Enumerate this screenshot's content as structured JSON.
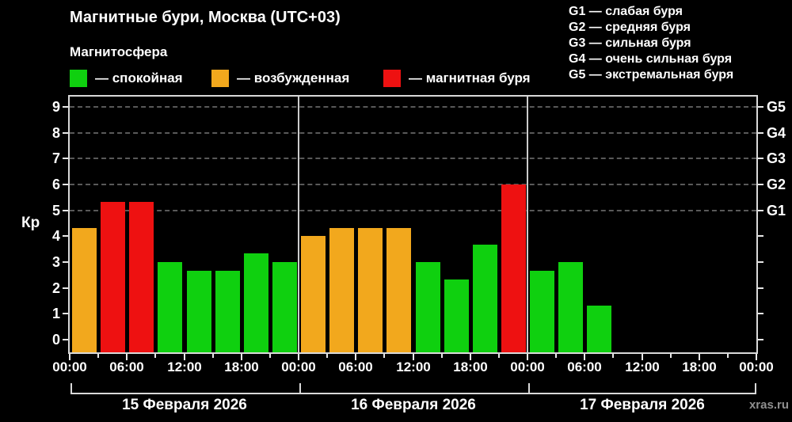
{
  "header": {
    "title": "Магнитные бури, Москва (UTC+03)",
    "subtitle": "Магнитосфера"
  },
  "legend": {
    "items": [
      {
        "key": "quiet",
        "label": "— спокойная",
        "color": "#0fd00f"
      },
      {
        "key": "excited",
        "label": "— возбужденная",
        "color": "#f2a81d"
      },
      {
        "key": "storm",
        "label": "— магнитная буря",
        "color": "#ee1111"
      }
    ]
  },
  "g_legend": {
    "items": [
      {
        "label": "G1 — слабая буря"
      },
      {
        "label": "G2 — средняя буря"
      },
      {
        "label": "G3 — сильная буря"
      },
      {
        "label": "G4 — очень сильная буря"
      },
      {
        "label": "G5 — экстремальная буря"
      }
    ]
  },
  "watermark": "xras.ru",
  "chart_data": {
    "type": "bar",
    "title": "Магнитные бури, Москва (UTC+03)",
    "ylabel": "Кр",
    "ylim": [
      0,
      9
    ],
    "yticks": [
      0,
      1,
      2,
      3,
      4,
      5,
      6,
      7,
      8,
      9
    ],
    "grid": "dashed horizontal at Kp 5-9",
    "time_ticks": [
      "00:00",
      "06:00",
      "12:00",
      "18:00"
    ],
    "closing_time_tick": "00:00",
    "hours_per_bar": 3,
    "thresholds": {
      "excited_min": 4,
      "storm_min": 5
    },
    "g_levels": [
      {
        "label": "G1",
        "kp": 5
      },
      {
        "label": "G2",
        "kp": 6
      },
      {
        "label": "G3",
        "kp": 7
      },
      {
        "label": "G4",
        "kp": 8
      },
      {
        "label": "G5",
        "kp": 9
      }
    ],
    "days": [
      {
        "date": "15 Февраля 2026",
        "kp": [
          4.33,
          5.33,
          5.33,
          3.0,
          2.67,
          2.67,
          3.33,
          3.0
        ]
      },
      {
        "date": "16 Февраля 2026",
        "kp": [
          4.0,
          4.33,
          4.33,
          4.33,
          3.0,
          2.33,
          3.67,
          6.0
        ]
      },
      {
        "date": "17 Февраля 2026",
        "kp": [
          2.67,
          3.0,
          1.33,
          null,
          null,
          null,
          null,
          null
        ]
      }
    ]
  },
  "colors": {
    "background": "#000000",
    "text": "#ffffff",
    "plot_border": "#d9d9d9",
    "day_divider": "#cccccc",
    "gridline": "#595959",
    "watermark": "#8f8f8f"
  }
}
